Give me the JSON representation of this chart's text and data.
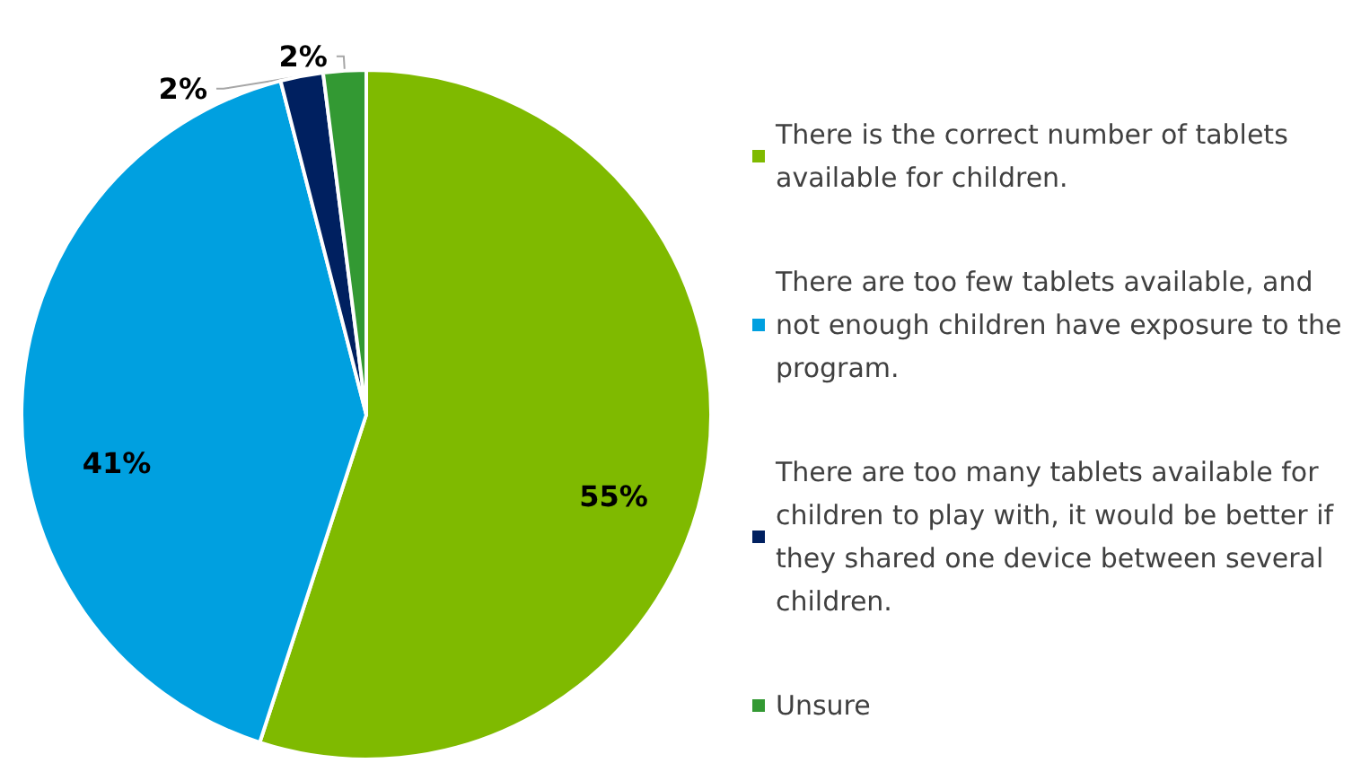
{
  "chart_data": {
    "type": "pie",
    "categories": [
      "There is the correct number of tablets available for children.",
      "There are too few tablets available, and not enough children have exposure to the program.",
      "There are too many tablets available for children to play with, it would be better if they shared one device between several children.",
      "Unsure"
    ],
    "values": [
      55,
      41,
      2,
      2
    ],
    "colors": [
      "#7fba00",
      "#00a0e0",
      "#002060",
      "#339933"
    ],
    "value_labels": [
      "55%",
      "41%",
      "2%",
      "2%"
    ],
    "legend": "right"
  }
}
